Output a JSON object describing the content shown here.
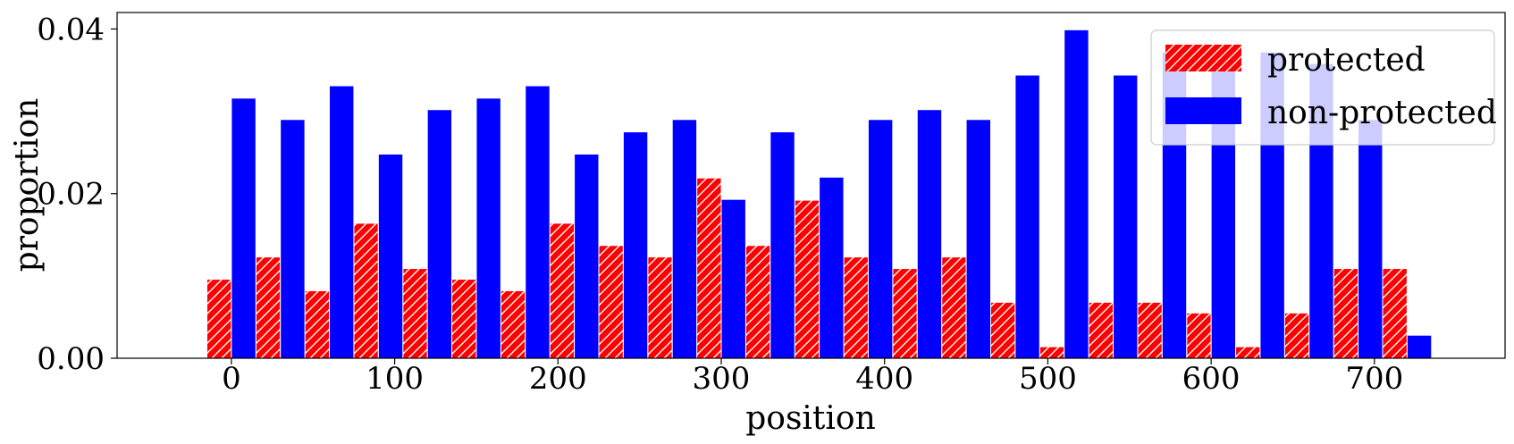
{
  "chart_data": {
    "type": "bar",
    "title": "",
    "xlabel": "position",
    "ylabel": "proportion",
    "xlim": [
      -70,
      780
    ],
    "ylim": [
      0,
      0.042
    ],
    "xticks": [
      0,
      100,
      200,
      300,
      400,
      500,
      600,
      700
    ],
    "xtick_labels": [
      "0",
      "100",
      "200",
      "300",
      "400",
      "500",
      "600",
      "700"
    ],
    "yticks": [
      0,
      0.02,
      0.04
    ],
    "ytick_labels": [
      "0.00",
      "0.02",
      "0.04"
    ],
    "grid": false,
    "legend_position": "top-right",
    "bin_width": 30,
    "x": [
      0,
      30,
      60,
      90,
      120,
      150,
      180,
      210,
      240,
      270,
      300,
      330,
      360,
      390,
      420,
      450,
      480,
      510,
      540,
      570,
      600,
      630,
      660,
      690,
      720
    ],
    "series": [
      {
        "name": "protected",
        "color": "#ff0000",
        "hatch": "diagonal",
        "values": [
          0.0096,
          0.0123,
          0.0082,
          0.0164,
          0.0109,
          0.0096,
          0.0082,
          0.0164,
          0.0137,
          0.0123,
          0.0219,
          0.0137,
          0.0192,
          0.0123,
          0.0109,
          0.0123,
          0.0068,
          0.0014,
          0.0068,
          0.0068,
          0.0055,
          0.0014,
          0.0055,
          0.0109,
          0.0109
        ]
      },
      {
        "name": "non-protected",
        "color": "#0000ff",
        "hatch": "none",
        "values": [
          0.0316,
          0.029,
          0.0331,
          0.0248,
          0.0302,
          0.0316,
          0.0331,
          0.0248,
          0.0275,
          0.029,
          0.0193,
          0.0275,
          0.022,
          0.029,
          0.0302,
          0.029,
          0.0344,
          0.0399,
          0.0344,
          0.0372,
          0.0358,
          0.0372,
          0.0358,
          0.029,
          0.0028
        ]
      }
    ]
  }
}
